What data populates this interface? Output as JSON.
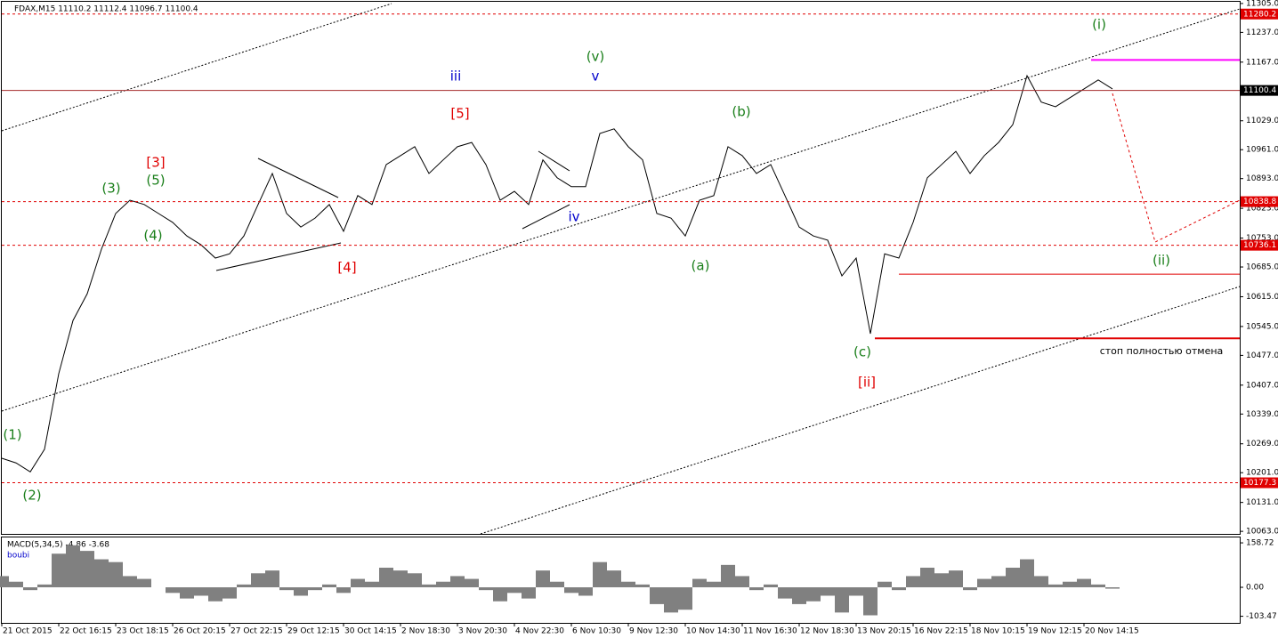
{
  "chart_data": [
    {
      "type": "line",
      "title": "FDAX,M15  11110.2 11112.4 11096.7 11100.4",
      "categories": [
        "21 Oct 2015",
        null,
        null,
        null,
        "22 Oct 16:15",
        null,
        null,
        null,
        "23 Oct 18:15",
        null,
        null,
        null,
        "26 Oct 20:15",
        null,
        null,
        null,
        "27 Oct 22:15",
        null,
        null,
        null,
        "29 Oct 12:15",
        null,
        null,
        null,
        "30 Oct 14:15",
        null,
        null,
        null,
        "2 Nov 18:30",
        null,
        null,
        null,
        "3 Nov 20:30",
        null,
        null,
        null,
        "4 Nov 22:30",
        null,
        null,
        null,
        "6 Nov 10:30",
        null,
        null,
        null,
        "9 Nov 12:30",
        null,
        null,
        null,
        "10 Nov 14:30",
        null,
        null,
        null,
        "11 Nov 16:30",
        null,
        null,
        null,
        "12 Nov 18:30",
        null,
        null,
        null,
        "13 Nov 20:15",
        null,
        null,
        null,
        "16 Nov 22:15",
        null,
        null,
        null,
        "18 Nov 10:15",
        null,
        null,
        null,
        "19 Nov 12:15",
        null,
        null,
        null,
        "20 Nov 14:15",
        null,
        null
      ],
      "values": [
        10235,
        10224,
        10203,
        10256,
        10434,
        10559,
        10622,
        10727,
        10811,
        10842,
        10832,
        10811,
        10790,
        10758,
        10737,
        10706,
        10716,
        10758,
        10832,
        10905,
        10811,
        10779,
        10800,
        10832,
        10769,
        10853,
        10832,
        10926,
        10947,
        10968,
        10905,
        10937,
        10968,
        10978,
        10926,
        10842,
        10863,
        10832,
        10937,
        10895,
        10874,
        10874,
        10999,
        11010,
        10968,
        10937,
        10811,
        10800,
        10758,
        10842,
        10853,
        10968,
        10947,
        10905,
        10926,
        10853,
        10779,
        10758,
        10748,
        10664,
        10706,
        10528,
        10716,
        10706,
        10790,
        10895,
        10926,
        10957,
        10905,
        10947,
        10978,
        11020,
        11135,
        11073,
        11062,
        11083,
        11104,
        11125,
        11104
      ],
      "color": "#000000",
      "ylim": [
        10057,
        11309
      ],
      "yticks": [
        {
          "value": 11305,
          "label": "11305.0"
        },
        {
          "value": 11237,
          "label": "11237.0"
        },
        {
          "value": 11167,
          "label": "11167.0"
        },
        {
          "value": 11099,
          "label": "11099.0"
        },
        {
          "value": 11029,
          "label": "11029.0"
        },
        {
          "value": 10961,
          "label": "10961.0"
        },
        {
          "value": 10893,
          "label": "10893.0"
        },
        {
          "value": 10823,
          "label": "10823.0"
        },
        {
          "value": 10753,
          "label": "10753.0"
        },
        {
          "value": 10685,
          "label": "10685.0"
        },
        {
          "value": 10615,
          "label": "10615.0"
        },
        {
          "value": 10545,
          "label": "10545.0"
        },
        {
          "value": 10477,
          "label": "10477.0"
        },
        {
          "value": 10407,
          "label": "10407.0"
        },
        {
          "value": 10339,
          "label": "10339.0"
        },
        {
          "value": 10269,
          "label": "10269.0"
        },
        {
          "value": 10201,
          "label": "10201.0"
        },
        {
          "value": 10131,
          "label": "10131.0"
        },
        {
          "value": 10063,
          "label": "10063.0"
        }
      ],
      "levels": [
        11280.2,
        10838.8,
        10736.1,
        10177.3
      ],
      "level_color": "#e00000",
      "last_price": 11100.4,
      "horizontal_lines": [
        {
          "value": 11172,
          "color": "#ff00ff"
        },
        {
          "value": 10668,
          "color": "#e00000"
        },
        {
          "value": 10517,
          "color": "#e00000"
        }
      ],
      "annotations": [
        {
          "text": "(1)",
          "color": "#1a7f1a"
        },
        {
          "text": "(2)",
          "color": "#1a7f1a"
        },
        {
          "text": "(3)",
          "color": "#1a7f1a"
        },
        {
          "text": "(4)",
          "color": "#1a7f1a"
        },
        {
          "text": "(5)",
          "color": "#1a7f1a"
        },
        {
          "text": "[3]",
          "color": "#e00000"
        },
        {
          "text": "[4]",
          "color": "#e00000"
        },
        {
          "text": "[5]",
          "color": "#e00000"
        },
        {
          "text": "iii",
          "color": "#0000cc"
        },
        {
          "text": "v",
          "color": "#0000cc"
        },
        {
          "text": "(v)",
          "color": "#1a7f1a"
        },
        {
          "text": "iv",
          "color": "#0000cc"
        },
        {
          "text": "(a)",
          "color": "#1a7f1a"
        },
        {
          "text": "(b)",
          "color": "#1a7f1a"
        },
        {
          "text": "(c)",
          "color": "#1a7f1a"
        },
        {
          "text": "[ii]",
          "color": "#e00000"
        },
        {
          "text": "(i)",
          "color": "#1a7f1a"
        },
        {
          "text": "(ii)",
          "color": "#1a7f1a"
        },
        {
          "text": "стоп полностью отмена",
          "color": "#000000"
        }
      ]
    },
    {
      "type": "bar",
      "title": "MACD(5,34,5) -4.86 -3.68",
      "subtitle": "boubi",
      "values": [
        40,
        20,
        -10,
        10,
        120,
        150,
        130,
        100,
        90,
        40,
        30,
        0,
        -20,
        -40,
        -30,
        -50,
        -40,
        10,
        50,
        60,
        -10,
        -30,
        -10,
        10,
        -20,
        30,
        20,
        70,
        60,
        50,
        10,
        20,
        40,
        30,
        -10,
        -50,
        -20,
        -40,
        60,
        20,
        -20,
        -30,
        90,
        60,
        20,
        10,
        -60,
        -90,
        -80,
        30,
        20,
        80,
        40,
        -10,
        10,
        -40,
        -60,
        -50,
        -30,
        -90,
        -30,
        -100,
        20,
        -10,
        40,
        70,
        50,
        60,
        -10,
        30,
        40,
        70,
        100,
        40,
        10,
        20,
        30,
        10,
        -4.86
      ],
      "color": "#808080",
      "ylim": [
        -127,
        178
      ],
      "yticks": [
        158.72,
        {
          "value": 0,
          "label": "0.00"
        },
        -103.47
      ]
    }
  ]
}
